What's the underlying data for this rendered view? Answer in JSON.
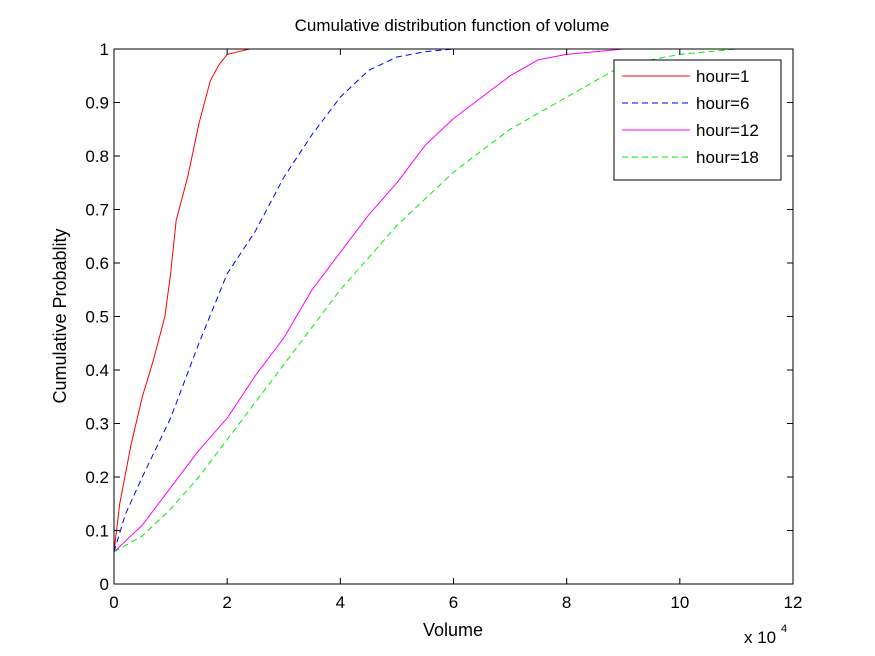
{
  "chart_data": {
    "type": "line",
    "title": "Cumulative distribution function of volume",
    "xlabel": "Volume",
    "ylabel": "Cumulative Probablity",
    "x_multiplier_label": "x 10",
    "x_multiplier_exponent": "4",
    "xlim": [
      0,
      12
    ],
    "ylim": [
      0,
      1
    ],
    "x_ticks": [
      0,
      2,
      4,
      6,
      8,
      10,
      12
    ],
    "x_tick_labels": [
      "0",
      "2",
      "4",
      "6",
      "8",
      "10",
      "12"
    ],
    "y_ticks": [
      0,
      0.1,
      0.2,
      0.3,
      0.4,
      0.5,
      0.6,
      0.7,
      0.8,
      0.9,
      1
    ],
    "y_tick_labels": [
      "0",
      "0.1",
      "0.2",
      "0.3",
      "0.4",
      "0.5",
      "0.6",
      "0.7",
      "0.8",
      "0.9",
      "1"
    ],
    "grid": false,
    "legend_position": "top-right",
    "series": [
      {
        "name": "hour=1",
        "color": "#ff0000",
        "dash": "solid",
        "x": [
          0,
          0.1,
          0.3,
          0.5,
          0.7,
          0.9,
          1.0,
          1.1,
          1.3,
          1.5,
          1.7,
          1.85,
          2.0,
          2.2,
          2.4,
          2.6
        ],
        "y": [
          0.06,
          0.15,
          0.26,
          0.35,
          0.42,
          0.5,
          0.58,
          0.68,
          0.76,
          0.86,
          0.94,
          0.97,
          0.99,
          0.995,
          1.0,
          1.0
        ]
      },
      {
        "name": "hour=6",
        "color": "#0000ff",
        "dash": "dashed",
        "x": [
          0,
          0.2,
          0.5,
          1.0,
          1.5,
          2.0,
          2.5,
          3.0,
          3.5,
          4.0,
          4.5,
          5.0,
          5.5,
          6.0,
          6.2
        ],
        "y": [
          0.06,
          0.13,
          0.2,
          0.31,
          0.45,
          0.58,
          0.66,
          0.76,
          0.84,
          0.91,
          0.96,
          0.985,
          0.995,
          1.0,
          1.0
        ]
      },
      {
        "name": "hour=12",
        "color": "#ff00ff",
        "dash": "solid",
        "x": [
          0,
          0.5,
          1.0,
          1.5,
          2.0,
          2.5,
          3.0,
          3.5,
          4.0,
          4.5,
          5.0,
          5.5,
          6.0,
          6.5,
          7.0,
          7.5,
          8.0,
          8.5,
          9.0,
          9.5
        ],
        "y": [
          0.06,
          0.11,
          0.18,
          0.25,
          0.31,
          0.39,
          0.46,
          0.55,
          0.62,
          0.69,
          0.75,
          0.82,
          0.87,
          0.91,
          0.95,
          0.98,
          0.99,
          0.995,
          1.0,
          1.0
        ]
      },
      {
        "name": "hour=18",
        "color": "#00ee00",
        "dash": "dashed",
        "x": [
          0,
          0.5,
          1.0,
          1.5,
          2.0,
          2.5,
          3.0,
          3.5,
          4.0,
          4.5,
          5.0,
          5.5,
          6.0,
          6.5,
          7.0,
          7.5,
          8.0,
          8.5,
          9.0,
          9.5,
          10.0,
          10.5,
          11.0
        ],
        "y": [
          0.06,
          0.09,
          0.14,
          0.2,
          0.27,
          0.34,
          0.41,
          0.48,
          0.55,
          0.61,
          0.67,
          0.72,
          0.77,
          0.81,
          0.85,
          0.88,
          0.91,
          0.94,
          0.97,
          0.98,
          0.99,
          0.995,
          1.0
        ]
      }
    ]
  }
}
